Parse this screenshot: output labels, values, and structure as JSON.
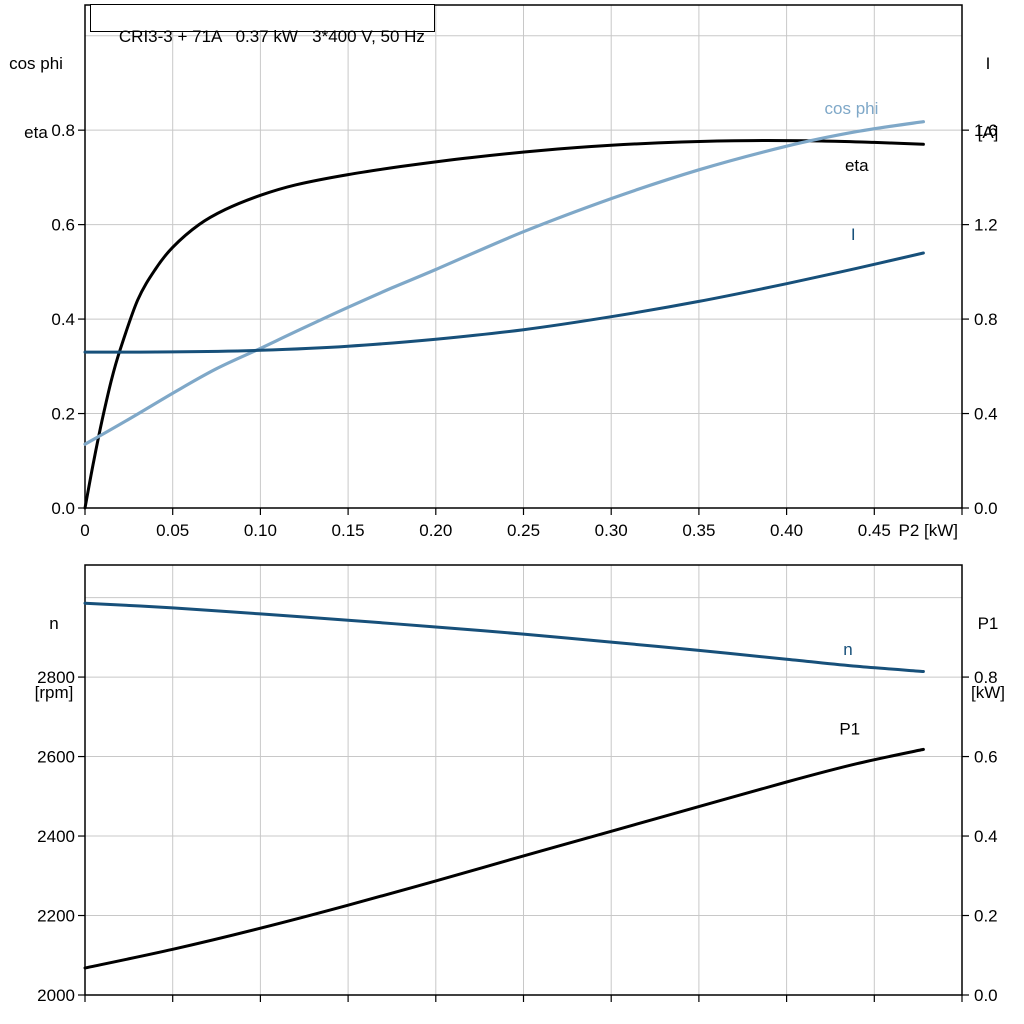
{
  "title": "CRI3-3 + 71A   0.37 kW   3*400 V, 50 Hz",
  "colors": {
    "background": "#ffffff",
    "frame": "#000000",
    "grid": "#c8c8c8",
    "text": "#000000",
    "eta_black": "#000000",
    "current_blue": "#17507a",
    "cosphi_blue": "#7fa8c8"
  },
  "chart_data": [
    {
      "name": "motor-performance-top",
      "type": "line",
      "x_axis": {
        "label": "P2 [kW]",
        "range": [
          0,
          0.5
        ],
        "tick_values": [
          0,
          0.05,
          0.1,
          0.15,
          0.2,
          0.25,
          0.3,
          0.35,
          0.4,
          0.45,
          0.5
        ],
        "tick_labels": [
          "0",
          "0.05",
          "0.10",
          "0.15",
          "0.20",
          "0.25",
          "0.30",
          "0.35",
          "0.40",
          "0.45",
          ""
        ],
        "grid_values": [
          0.05,
          0.1,
          0.15,
          0.2,
          0.25,
          0.3,
          0.35,
          0.4,
          0.45
        ]
      },
      "left_axis": {
        "label_lines": [
          "cos phi",
          "eta"
        ],
        "range": [
          0,
          1.065
        ],
        "tick_values": [
          0,
          0.2,
          0.4,
          0.6,
          0.8
        ],
        "tick_labels": [
          "0.0",
          "0.2",
          "0.4",
          "0.6",
          "0.8"
        ],
        "grid_values": [
          0.2,
          0.4,
          0.6,
          0.8,
          1.0
        ]
      },
      "right_axis": {
        "label_lines": [
          "I",
          "[A]"
        ],
        "range": [
          0,
          2.13
        ],
        "tick_values": [
          0,
          0.4,
          0.8,
          1.2,
          1.6
        ],
        "tick_labels": [
          "0.0",
          "0.4",
          "0.8",
          "1.2",
          "1.6"
        ]
      },
      "series": [
        {
          "id": "eta",
          "name": "eta",
          "axis": "left",
          "color": "#000000",
          "width": 3,
          "x": [
            0,
            0.005,
            0.01,
            0.015,
            0.02,
            0.03,
            0.04,
            0.05,
            0.065,
            0.08,
            0.1,
            0.12,
            0.15,
            0.18,
            0.22,
            0.26,
            0.3,
            0.34,
            0.38,
            0.42,
            0.45,
            0.478
          ],
          "y": [
            0,
            0.1,
            0.19,
            0.27,
            0.335,
            0.44,
            0.505,
            0.552,
            0.6,
            0.632,
            0.662,
            0.684,
            0.706,
            0.723,
            0.742,
            0.757,
            0.768,
            0.775,
            0.778,
            0.777,
            0.774,
            0.77
          ],
          "label_at": {
            "x": 0.44,
            "y": 0.713
          }
        },
        {
          "id": "cos-phi",
          "name": "cos phi",
          "axis": "left",
          "color": "#7fa8c8",
          "width": 3.2,
          "x": [
            0,
            0.025,
            0.05,
            0.075,
            0.1,
            0.125,
            0.15,
            0.175,
            0.2,
            0.25,
            0.3,
            0.35,
            0.4,
            0.44,
            0.478
          ],
          "y": [
            0.135,
            0.188,
            0.243,
            0.295,
            0.338,
            0.382,
            0.425,
            0.466,
            0.505,
            0.585,
            0.655,
            0.716,
            0.766,
            0.797,
            0.818
          ],
          "label_at": {
            "x": 0.437,
            "y": 0.834
          }
        },
        {
          "id": "current",
          "name": "I",
          "axis": "right",
          "color": "#17507a",
          "width": 3,
          "x": [
            0,
            0.05,
            0.1,
            0.15,
            0.2,
            0.25,
            0.3,
            0.35,
            0.4,
            0.44,
            0.478
          ],
          "y": [
            0.66,
            0.661,
            0.668,
            0.685,
            0.715,
            0.755,
            0.81,
            0.875,
            0.95,
            1.015,
            1.08
          ],
          "label_at": {
            "x": 0.438,
            "y": 1.135
          }
        }
      ]
    },
    {
      "name": "motor-performance-bottom",
      "type": "line",
      "x_axis": {
        "label": "",
        "range": [
          0,
          0.5
        ],
        "tick_values": [
          0,
          0.05,
          0.1,
          0.15,
          0.2,
          0.25,
          0.3,
          0.35,
          0.4,
          0.45,
          0.5
        ],
        "tick_labels": [],
        "grid_values": [
          0.05,
          0.1,
          0.15,
          0.2,
          0.25,
          0.3,
          0.35,
          0.4,
          0.45
        ]
      },
      "left_axis": {
        "label_lines": [
          "n",
          "[rpm]"
        ],
        "range": [
          2000,
          3082
        ],
        "tick_values": [
          2000,
          2200,
          2400,
          2600,
          2800
        ],
        "tick_labels": [
          "2000",
          "2200",
          "2400",
          "2600",
          "2800"
        ],
        "grid_values": [
          2200,
          2400,
          2600,
          2800,
          3000
        ]
      },
      "right_axis": {
        "label_lines": [
          "P1",
          "[kW]"
        ],
        "range": [
          0,
          1.082
        ],
        "tick_values": [
          0,
          0.2,
          0.4,
          0.6,
          0.8
        ],
        "tick_labels": [
          "0.0",
          "0.2",
          "0.4",
          "0.6",
          "0.8"
        ]
      },
      "series": [
        {
          "id": "speed",
          "name": "n",
          "axis": "left",
          "color": "#17507a",
          "width": 3,
          "x": [
            0,
            0.05,
            0.1,
            0.15,
            0.2,
            0.25,
            0.3,
            0.35,
            0.4,
            0.44,
            0.478
          ],
          "y": [
            2986,
            2974,
            2959,
            2943,
            2926,
            2908,
            2888,
            2867,
            2845,
            2827,
            2814
          ],
          "label_at": {
            "x": 0.435,
            "y": 2856
          }
        },
        {
          "id": "p1",
          "name": "P1",
          "axis": "right",
          "color": "#000000",
          "width": 3,
          "x": [
            0,
            0.05,
            0.1,
            0.15,
            0.2,
            0.25,
            0.3,
            0.35,
            0.4,
            0.44,
            0.478
          ],
          "y": [
            0.068,
            0.115,
            0.168,
            0.226,
            0.287,
            0.35,
            0.412,
            0.474,
            0.536,
            0.582,
            0.618
          ],
          "label_at": {
            "x": 0.436,
            "y": 0.655
          }
        }
      ]
    }
  ]
}
